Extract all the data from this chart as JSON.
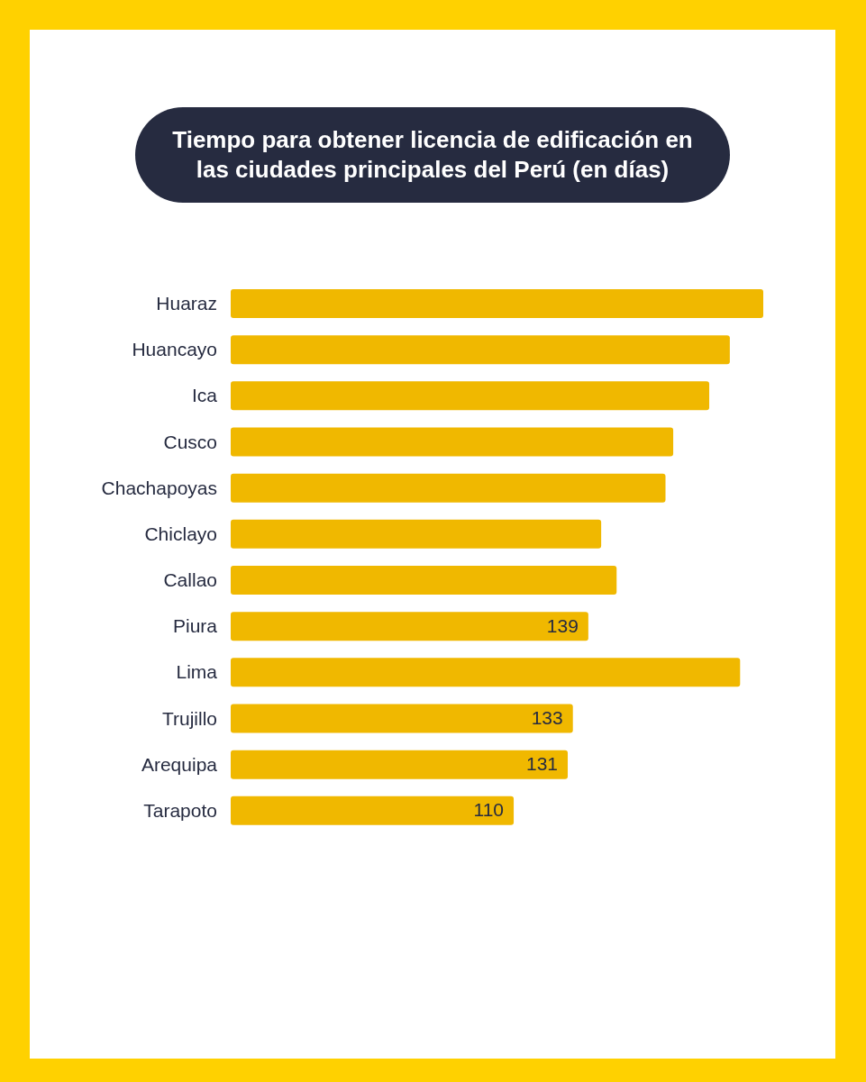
{
  "chart_data": {
    "type": "bar",
    "orientation": "horizontal",
    "title": "Tiempo para obtener licencia de edificación en las ciudades principales del Perú (en días)",
    "categories": [
      "Huaraz",
      "Huancayo",
      "Ica",
      "Cusco",
      "Chachapoyas",
      "Chiclayo",
      "Callao",
      "Piura",
      "Lima",
      "Trujillo",
      "Arequipa",
      "Tarapoto"
    ],
    "values": [
      207,
      194,
      186,
      172,
      169,
      144,
      150,
      139,
      198,
      133,
      131,
      110
    ],
    "value_labels": [
      null,
      null,
      null,
      null,
      null,
      null,
      null,
      "139",
      null,
      "133",
      "131",
      "110"
    ],
    "color": "#f0b800",
    "tick_labels": "y"
  }
}
